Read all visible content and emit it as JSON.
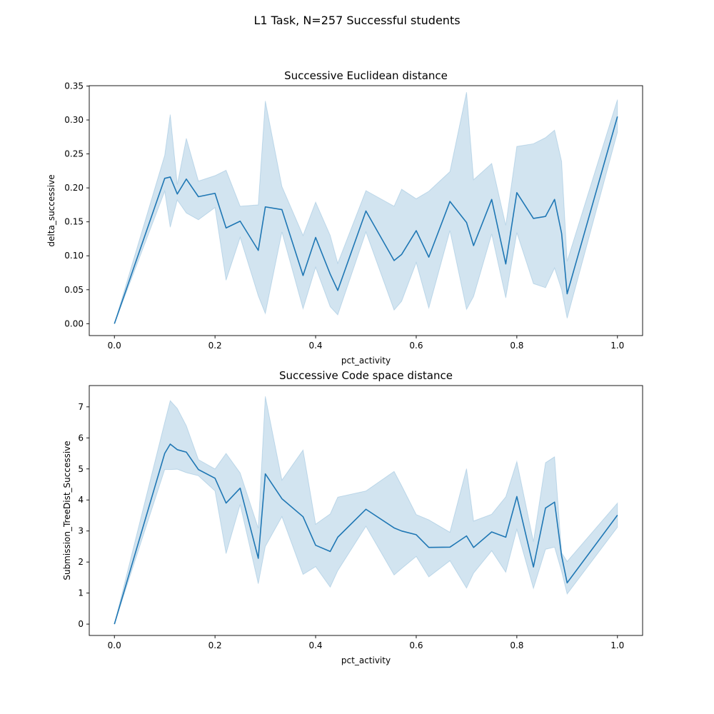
{
  "suptitle": "L1 Task, N=257 Successful students",
  "colors": {
    "line": "#1f77b4",
    "band": "#1f77b4",
    "axis": "#000000"
  },
  "chart_data": [
    {
      "type": "line",
      "title": "Successive Euclidean distance",
      "xlabel": "pct_activity",
      "ylabel": "delta_successive",
      "xlim": [
        -0.05,
        1.05
      ],
      "ylim": [
        -0.0175,
        0.3505
      ],
      "xticks": [
        0.0,
        0.2,
        0.4,
        0.6,
        0.8,
        1.0
      ],
      "xtick_labels": [
        "0.0",
        "0.2",
        "0.4",
        "0.6",
        "0.8",
        "1.0"
      ],
      "yticks": [
        0.0,
        0.05,
        0.1,
        0.15,
        0.2,
        0.25,
        0.3,
        0.35
      ],
      "ytick_labels": [
        "0.00",
        "0.05",
        "0.10",
        "0.15",
        "0.20",
        "0.25",
        "0.30",
        "0.35"
      ],
      "grid": false,
      "band": "confidence interval",
      "x": [
        0.0,
        0.1,
        0.111,
        0.125,
        0.143,
        0.167,
        0.2,
        0.222,
        0.25,
        0.286,
        0.3,
        0.333,
        0.375,
        0.4,
        0.429,
        0.444,
        0.5,
        0.556,
        0.571,
        0.6,
        0.625,
        0.667,
        0.7,
        0.714,
        0.75,
        0.778,
        0.8,
        0.833,
        0.857,
        0.875,
        0.889,
        0.9,
        1.0
      ],
      "y": [
        0.0,
        0.214,
        0.216,
        0.191,
        0.213,
        0.187,
        0.192,
        0.141,
        0.151,
        0.108,
        0.172,
        0.168,
        0.071,
        0.127,
        0.073,
        0.049,
        0.166,
        0.093,
        0.102,
        0.137,
        0.098,
        0.18,
        0.149,
        0.115,
        0.183,
        0.088,
        0.193,
        0.155,
        0.158,
        0.183,
        0.133,
        0.044,
        0.305
      ],
      "y_lower": [
        0.0,
        0.195,
        0.142,
        0.182,
        0.163,
        0.153,
        0.171,
        0.064,
        0.127,
        0.041,
        0.015,
        0.135,
        0.022,
        0.083,
        0.025,
        0.013,
        0.135,
        0.02,
        0.033,
        0.09,
        0.023,
        0.137,
        0.021,
        0.04,
        0.132,
        0.038,
        0.134,
        0.059,
        0.053,
        0.082,
        0.05,
        0.008,
        0.282
      ],
      "y_upper": [
        0.0,
        0.248,
        0.308,
        0.205,
        0.273,
        0.21,
        0.218,
        0.226,
        0.173,
        0.175,
        0.328,
        0.202,
        0.13,
        0.179,
        0.13,
        0.089,
        0.196,
        0.173,
        0.198,
        0.184,
        0.195,
        0.224,
        0.341,
        0.212,
        0.236,
        0.145,
        0.261,
        0.265,
        0.274,
        0.285,
        0.239,
        0.092,
        0.33
      ]
    },
    {
      "type": "line",
      "title": "Successive Code space distance",
      "xlabel": "pct_activity",
      "ylabel": "Submission_TreeDist_Successive",
      "xlim": [
        -0.05,
        1.05
      ],
      "ylim": [
        -0.366,
        7.686
      ],
      "xticks": [
        0.0,
        0.2,
        0.4,
        0.6,
        0.8,
        1.0
      ],
      "xtick_labels": [
        "0.0",
        "0.2",
        "0.4",
        "0.6",
        "0.8",
        "1.0"
      ],
      "yticks": [
        0,
        1,
        2,
        3,
        4,
        5,
        6,
        7
      ],
      "ytick_labels": [
        "0",
        "1",
        "2",
        "3",
        "4",
        "5",
        "6",
        "7"
      ],
      "grid": false,
      "band": "confidence interval",
      "x": [
        0.0,
        0.1,
        0.111,
        0.125,
        0.143,
        0.167,
        0.2,
        0.222,
        0.25,
        0.286,
        0.3,
        0.333,
        0.375,
        0.4,
        0.429,
        0.444,
        0.5,
        0.556,
        0.571,
        0.6,
        0.625,
        0.667,
        0.7,
        0.714,
        0.75,
        0.778,
        0.8,
        0.833,
        0.857,
        0.875,
        0.889,
        0.9,
        1.0
      ],
      "y": [
        0.0,
        5.5,
        5.8,
        5.62,
        5.54,
        4.98,
        4.7,
        3.9,
        4.38,
        2.12,
        4.84,
        4.04,
        3.46,
        2.54,
        2.34,
        2.8,
        3.7,
        3.1,
        3.0,
        2.88,
        2.47,
        2.48,
        2.84,
        2.47,
        2.97,
        2.8,
        4.11,
        1.84,
        3.74,
        3.93,
        2.2,
        1.33,
        3.51
      ],
      "y_lower": [
        0.0,
        4.98,
        4.98,
        4.99,
        4.88,
        4.78,
        4.29,
        2.27,
        3.85,
        1.3,
        2.5,
        3.46,
        1.6,
        1.85,
        1.19,
        1.72,
        3.15,
        1.58,
        1.79,
        2.18,
        1.52,
        2.04,
        1.16,
        1.64,
        2.36,
        1.67,
        3.05,
        1.15,
        2.41,
        2.48,
        1.7,
        0.97,
        3.12
      ],
      "y_upper": [
        0.0,
        6.5,
        7.2,
        6.95,
        6.39,
        5.3,
        5.0,
        5.5,
        4.87,
        3.09,
        7.34,
        4.64,
        5.61,
        3.22,
        3.55,
        4.09,
        4.29,
        4.92,
        4.46,
        3.53,
        3.36,
        2.96,
        5.01,
        3.32,
        3.54,
        4.1,
        5.24,
        2.66,
        5.2,
        5.39,
        2.3,
        2.02,
        3.9
      ]
    }
  ]
}
